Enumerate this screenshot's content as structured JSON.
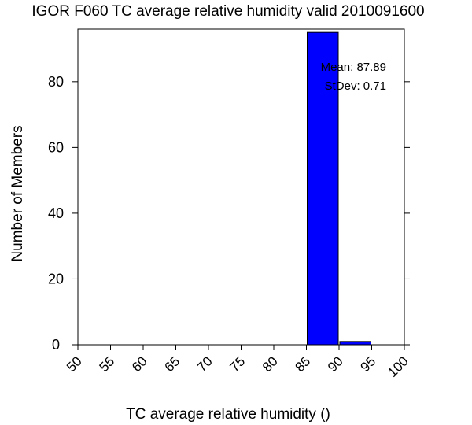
{
  "chart_data": {
    "type": "bar",
    "title": "IGOR F060 TC average relative humidity valid 2010091600",
    "xlabel": "TC average relative humidity ()",
    "ylabel": "Number of Members",
    "bins": [
      {
        "from": 85,
        "to": 90,
        "count": 95
      },
      {
        "from": 90,
        "to": 95,
        "count": 1
      }
    ],
    "xlim": [
      50,
      100
    ],
    "ylim": [
      0,
      96
    ],
    "x_ticks": [
      "50",
      "55",
      "60",
      "65",
      "70",
      "75",
      "80",
      "85",
      "90",
      "95",
      "100"
    ],
    "y_ticks": [
      "0",
      "20",
      "40",
      "60",
      "80"
    ],
    "annotations": [
      "Mean: 87.89",
      "StDev: 0.71"
    ],
    "bar_color": "#0000ff",
    "grid": false,
    "legend": "none"
  }
}
